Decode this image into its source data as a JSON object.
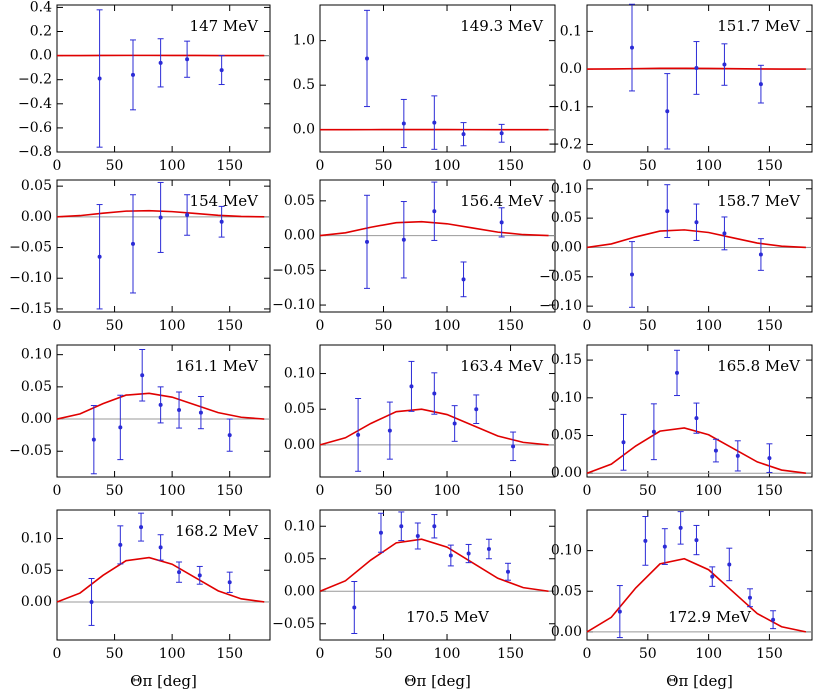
{
  "chart_data": [
    {
      "type": "scatter",
      "label": "147 MeV",
      "label_corner": "upper right",
      "color": "#2b2bd6",
      "x": [
        37,
        66,
        90,
        113,
        143
      ],
      "values": [
        -0.19,
        -0.16,
        -0.06,
        -0.03,
        -0.12
      ],
      "errors": [
        0.57,
        0.29,
        0.2,
        0.15,
        0.12
      ],
      "curve": {
        "color": "#e00000",
        "x": [
          0,
          20,
          40,
          60,
          80,
          100,
          120,
          140,
          160,
          180
        ],
        "values": [
          0,
          0.0004,
          0.0012,
          0.0019,
          0.002,
          0.0017,
          0.0011,
          0.0005,
          0.0001,
          0
        ]
      },
      "xlim": [
        0,
        185
      ],
      "xticks": [
        0,
        50,
        100,
        150
      ],
      "ylim": [
        -0.8,
        0.42
      ],
      "yticks": [
        {
          "value": -0.8,
          "label": "−0.8"
        },
        {
          "value": -0.6,
          "label": "−0.6"
        },
        {
          "value": -0.4,
          "label": "−0.4"
        },
        {
          "value": -0.2,
          "label": "−0.2"
        },
        {
          "value": 0,
          "label": "0.0"
        },
        0.2,
        0.4
      ]
    },
    {
      "type": "scatter",
      "label": "149.3 MeV",
      "label_corner": "upper right",
      "color": "#2b2bd6",
      "x": [
        37,
        66,
        90,
        113,
        143
      ],
      "values": [
        0.8,
        0.07,
        0.08,
        -0.05,
        -0.04
      ],
      "errors": [
        0.54,
        0.27,
        0.3,
        0.13,
        0.1
      ],
      "curve": {
        "color": "#e00000",
        "x": [
          0,
          20,
          40,
          60,
          80,
          100,
          120,
          140,
          160,
          180
        ],
        "values": [
          0,
          0.0004,
          0.0012,
          0.0019,
          0.002,
          0.0017,
          0.0011,
          0.0005,
          0.0001,
          0
        ]
      },
      "xlim": [
        0,
        185
      ],
      "xticks": [
        0,
        50,
        100,
        150
      ],
      "ylim": [
        -0.25,
        1.4
      ],
      "yticks": [
        {
          "value": 0,
          "label": "0.0"
        },
        0.5,
        {
          "value": 1,
          "label": "1.0"
        }
      ]
    },
    {
      "type": "scatter",
      "label": "151.7 MeV",
      "label_corner": "upper right",
      "color": "#2b2bd6",
      "x": [
        37,
        66,
        90,
        113,
        143
      ],
      "values": [
        0.057,
        -0.112,
        0.003,
        0.012,
        -0.04
      ],
      "errors": [
        0.115,
        0.1,
        0.07,
        0.055,
        0.05
      ],
      "curve": {
        "color": "#e00000",
        "x": [
          0,
          20,
          40,
          60,
          80,
          100,
          120,
          140,
          160,
          180
        ],
        "values": [
          0,
          0.0004,
          0.0012,
          0.0019,
          0.002,
          0.0017,
          0.0011,
          0.0005,
          0.0001,
          0
        ]
      },
      "xlim": [
        0,
        185
      ],
      "xticks": [
        0,
        50,
        100,
        150
      ],
      "ylim": [
        -0.22,
        0.17
      ],
      "yticks": [
        {
          "value": -0.2,
          "label": "−0.2"
        },
        {
          "value": -0.1,
          "label": "−0.1"
        },
        {
          "value": 0,
          "label": "0.0"
        },
        0.1
      ]
    },
    {
      "type": "scatter",
      "label": "154 MeV",
      "label_corner": "upper right",
      "color": "#2b2bd6",
      "x": [
        37,
        66,
        90,
        113,
        143
      ],
      "values": [
        -0.065,
        -0.044,
        -0.001,
        0.003,
        -0.008
      ],
      "errors": [
        0.085,
        0.08,
        0.057,
        0.033,
        0.025
      ],
      "curve": {
        "color": "#e00000",
        "x": [
          0,
          20,
          40,
          60,
          80,
          100,
          120,
          140,
          160,
          180
        ],
        "values": [
          0,
          0.002,
          0.006,
          0.0093,
          0.01,
          0.0085,
          0.0055,
          0.0025,
          0.0007,
          0
        ]
      },
      "xlim": [
        0,
        185
      ],
      "xticks": [
        0,
        50,
        100,
        150
      ],
      "ylim": [
        -0.155,
        0.06
      ],
      "yticks": [
        {
          "value": -0.15,
          "label": "−0.15"
        },
        {
          "value": -0.1,
          "label": "−0.10"
        },
        {
          "value": -0.05,
          "label": "−0.05"
        },
        {
          "value": 0,
          "label": "0.00"
        },
        0.05
      ]
    },
    {
      "type": "scatter",
      "label": "156.4 MeV",
      "label_corner": "upper right",
      "color": "#2b2bd6",
      "x": [
        37,
        66,
        90,
        113,
        143
      ],
      "values": [
        -0.009,
        -0.006,
        0.035,
        -0.063,
        0.019
      ],
      "errors": [
        0.067,
        0.055,
        0.042,
        0.025,
        0.021
      ],
      "curve": {
        "color": "#e00000",
        "x": [
          0,
          20,
          40,
          60,
          80,
          100,
          120,
          140,
          160,
          180
        ],
        "values": [
          0,
          0.004,
          0.012,
          0.0186,
          0.02,
          0.017,
          0.011,
          0.005,
          0.0014,
          0
        ]
      },
      "xlim": [
        0,
        185
      ],
      "xticks": [
        0,
        50,
        100,
        150
      ],
      "ylim": [
        -0.11,
        0.08
      ],
      "yticks": [
        {
          "value": -0.1,
          "label": "−0.10"
        },
        {
          "value": -0.05,
          "label": "−0.05"
        },
        {
          "value": 0,
          "label": "0.00"
        },
        0.05
      ]
    },
    {
      "type": "scatter",
      "label": "158.7 MeV",
      "label_corner": "upper right",
      "color": "#2b2bd6",
      "x": [
        37,
        66,
        90,
        113,
        143
      ],
      "values": [
        -0.046,
        0.062,
        0.043,
        0.024,
        -0.012
      ],
      "errors": [
        0.056,
        0.045,
        0.031,
        0.028,
        0.027
      ],
      "curve": {
        "color": "#e00000",
        "x": [
          0,
          20,
          40,
          60,
          80,
          100,
          120,
          140,
          160,
          180
        ],
        "values": [
          0,
          0.006,
          0.018,
          0.0279,
          0.03,
          0.0255,
          0.0165,
          0.0075,
          0.0021,
          0
        ]
      },
      "xlim": [
        0,
        185
      ],
      "xticks": [
        0,
        50,
        100,
        150
      ],
      "ylim": [
        -0.11,
        0.115
      ],
      "yticks": [
        {
          "value": -0.1,
          "label": "−0.10"
        },
        {
          "value": -0.05,
          "label": "−0.05"
        },
        {
          "value": 0,
          "label": "0.00"
        },
        0.05,
        {
          "value": 0.1,
          "label": "0.10"
        }
      ]
    },
    {
      "type": "scatter",
      "label": "161.1 MeV",
      "label_corner": "upper right",
      "color": "#2b2bd6",
      "x": [
        32,
        55,
        74,
        90,
        106,
        125,
        150
      ],
      "values": [
        -0.032,
        -0.013,
        0.068,
        0.022,
        0.014,
        0.01,
        -0.025
      ],
      "errors": [
        0.053,
        0.05,
        0.04,
        0.028,
        0.028,
        0.025,
        0.025
      ],
      "curve": {
        "color": "#e00000",
        "x": [
          0,
          20,
          40,
          60,
          80,
          100,
          120,
          140,
          160,
          180
        ],
        "values": [
          0,
          0.008,
          0.024,
          0.0372,
          0.04,
          0.034,
          0.022,
          0.01,
          0.0028,
          0
        ]
      },
      "xlim": [
        0,
        185
      ],
      "xticks": [
        0,
        50,
        100,
        150
      ],
      "ylim": [
        -0.09,
        0.115
      ],
      "yticks": [
        {
          "value": -0.05,
          "label": "−0.05"
        },
        {
          "value": 0,
          "label": "0.00"
        },
        0.05,
        {
          "value": 0.1,
          "label": "0.10"
        }
      ]
    },
    {
      "type": "scatter",
      "label": "163.4 MeV",
      "label_corner": "upper right",
      "color": "#2b2bd6",
      "x": [
        30,
        55,
        72,
        90,
        106,
        123,
        152
      ],
      "values": [
        0.014,
        0.02,
        0.082,
        0.072,
        0.03,
        0.05,
        -0.002
      ],
      "errors": [
        0.051,
        0.04,
        0.035,
        0.029,
        0.025,
        0.02,
        0.02
      ],
      "curve": {
        "color": "#e00000",
        "x": [
          0,
          20,
          40,
          60,
          80,
          100,
          120,
          140,
          160,
          180
        ],
        "values": [
          0,
          0.01,
          0.03,
          0.0465,
          0.05,
          0.0425,
          0.0275,
          0.0125,
          0.0035,
          0
        ]
      },
      "xlim": [
        0,
        185
      ],
      "xticks": [
        0,
        50,
        100,
        150
      ],
      "ylim": [
        -0.045,
        0.14
      ],
      "yticks": [
        {
          "value": 0,
          "label": "0.00"
        },
        0.05,
        {
          "value": 0.1,
          "label": "0.10"
        }
      ]
    },
    {
      "type": "scatter",
      "label": "165.8 MeV",
      "label_corner": "upper right",
      "color": "#2b2bd6",
      "x": [
        30,
        55,
        74,
        90,
        106,
        124,
        150
      ],
      "values": [
        0.041,
        0.055,
        0.133,
        0.073,
        0.03,
        0.023,
        0.02
      ],
      "errors": [
        0.037,
        0.037,
        0.03,
        0.02,
        0.015,
        0.02,
        0.019
      ],
      "curve": {
        "color": "#e00000",
        "x": [
          0,
          20,
          40,
          60,
          80,
          100,
          120,
          140,
          160,
          180
        ],
        "values": [
          0,
          0.012,
          0.036,
          0.0558,
          0.06,
          0.051,
          0.033,
          0.015,
          0.0042,
          0
        ]
      },
      "xlim": [
        0,
        185
      ],
      "xticks": [
        0,
        50,
        100,
        150
      ],
      "ylim": [
        -0.005,
        0.17
      ],
      "yticks": [
        {
          "value": 0,
          "label": "0.00"
        },
        0.05,
        {
          "value": 0.1,
          "label": "0.10"
        },
        0.15
      ]
    },
    {
      "type": "scatter",
      "label": "168.2 MeV",
      "label_corner": "upper right",
      "xlabel": "Θπ [deg]",
      "color": "#2b2bd6",
      "x": [
        30,
        55,
        73,
        90,
        106,
        124,
        150
      ],
      "values": [
        0,
        0.09,
        0.118,
        0.086,
        0.047,
        0.042,
        0.031
      ],
      "errors": [
        0.037,
        0.03,
        0.022,
        0.02,
        0.016,
        0.014,
        0.016
      ],
      "curve": {
        "color": "#e00000",
        "x": [
          0,
          20,
          40,
          60,
          80,
          100,
          120,
          140,
          160,
          180
        ],
        "values": [
          0,
          0.014,
          0.042,
          0.0651,
          0.07,
          0.0595,
          0.0385,
          0.0175,
          0.0049,
          0
        ]
      },
      "xlim": [
        0,
        185
      ],
      "xticks": [
        0,
        50,
        100,
        150
      ],
      "ylim": [
        -0.06,
        0.145
      ],
      "yticks": [
        {
          "value": 0,
          "label": "0.00"
        },
        0.05,
        {
          "value": 0.1,
          "label": "0.10"
        }
      ]
    },
    {
      "type": "scatter",
      "label": "170.5 MeV",
      "label_corner": "lower center",
      "xlabel": "Θπ [deg]",
      "color": "#2b2bd6",
      "x": [
        27,
        48,
        64,
        77,
        90,
        103,
        117,
        133,
        148
      ],
      "values": [
        -0.025,
        0.09,
        0.1,
        0.085,
        0.1,
        0.055,
        0.058,
        0.065,
        0.03
      ],
      "errors": [
        0.04,
        0.03,
        0.022,
        0.02,
        0.018,
        0.016,
        0.014,
        0.015,
        0.013
      ],
      "curve": {
        "color": "#e00000",
        "x": [
          0,
          20,
          40,
          60,
          80,
          100,
          120,
          140,
          160,
          180
        ],
        "values": [
          0,
          0.016,
          0.048,
          0.0744,
          0.08,
          0.068,
          0.044,
          0.02,
          0.0056,
          0
        ]
      },
      "xlim": [
        0,
        185
      ],
      "xticks": [
        0,
        50,
        100,
        150
      ],
      "ylim": [
        -0.075,
        0.125
      ],
      "yticks": [
        {
          "value": -0.05,
          "label": "−0.05"
        },
        {
          "value": 0,
          "label": "0.00"
        },
        0.05,
        {
          "value": 0.1,
          "label": "0.10"
        }
      ]
    },
    {
      "type": "scatter",
      "label": "172.9 MeV",
      "label_corner": "lower center",
      "xlabel": "Θπ [deg]",
      "color": "#2b2bd6",
      "x": [
        27,
        48,
        64,
        77,
        90,
        103,
        117,
        134,
        153
      ],
      "values": [
        0.025,
        0.112,
        0.105,
        0.128,
        0.113,
        0.068,
        0.083,
        0.042,
        0.015
      ],
      "errors": [
        0.032,
        0.03,
        0.022,
        0.02,
        0.018,
        0.012,
        0.02,
        0.011,
        0.011
      ],
      "curve": {
        "color": "#e00000",
        "x": [
          0,
          20,
          40,
          60,
          80,
          100,
          120,
          140,
          160,
          180
        ],
        "values": [
          0,
          0.018,
          0.054,
          0.0837,
          0.09,
          0.0765,
          0.0495,
          0.0225,
          0.0063,
          0
        ]
      },
      "xlim": [
        0,
        185
      ],
      "xticks": [
        0,
        50,
        100,
        150
      ],
      "ylim": [
        -0.01,
        0.15
      ],
      "yticks": [
        {
          "value": 0,
          "label": "0.00"
        },
        0.05,
        {
          "value": 0.1,
          "label": "0.10"
        }
      ]
    }
  ]
}
